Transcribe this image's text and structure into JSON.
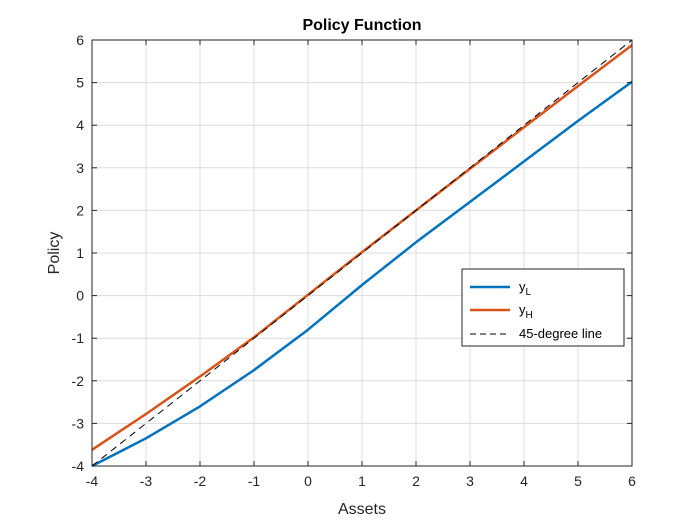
{
  "chart_data": {
    "type": "line",
    "title": "Policy Function",
    "xlabel": "Assets",
    "ylabel": "Policy",
    "xlim": [
      -4,
      6
    ],
    "ylim": [
      -4,
      6
    ],
    "xticks": [
      "-4",
      "-3",
      "-2",
      "-1",
      "0",
      "1",
      "2",
      "3",
      "4",
      "5",
      "6"
    ],
    "yticks": [
      "-4",
      "-3",
      "-2",
      "-1",
      "0",
      "1",
      "2",
      "3",
      "4",
      "5",
      "6"
    ],
    "grid": true,
    "legend_position": "right",
    "series": [
      {
        "name": "y",
        "subscript": "L",
        "color": "#0072BD",
        "style": "solid",
        "x": [
          -4,
          -3,
          -2,
          -1,
          0,
          1,
          2,
          3,
          4,
          5,
          6
        ],
        "y": [
          -4.0,
          -3.35,
          -2.6,
          -1.75,
          -0.8,
          0.25,
          1.25,
          2.2,
          3.15,
          4.1,
          5.02
        ]
      },
      {
        "name": "y",
        "subscript": "H",
        "color": "#D95319",
        "style": "solid",
        "x": [
          -4,
          -3,
          -2,
          -1,
          0,
          1,
          2,
          3,
          4,
          5,
          6
        ],
        "y": [
          -3.62,
          -2.78,
          -1.9,
          -0.98,
          0.02,
          1.02,
          2.0,
          2.98,
          3.95,
          4.92,
          5.88
        ]
      },
      {
        "name": "45-degree line",
        "color": "#000000",
        "style": "dashed",
        "x": [
          -4,
          6
        ],
        "y": [
          -4,
          6
        ]
      }
    ]
  }
}
